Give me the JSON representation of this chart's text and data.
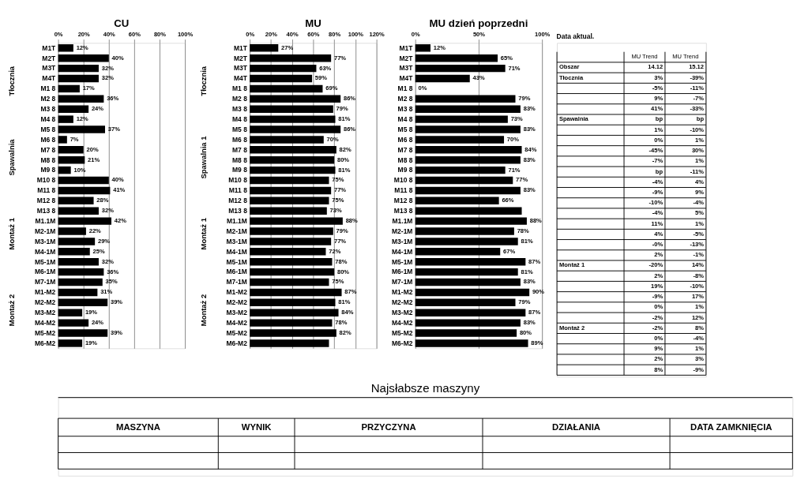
{
  "chart_data": [
    {
      "type": "bar",
      "orientation": "horizontal",
      "title": "CU",
      "color": "#000000",
      "grid": "x",
      "categories": [
        "M1T",
        "M2T",
        "M3T",
        "M4T",
        "M1 8",
        "M2 8",
        "M3 8",
        "M4 8",
        "M5 8",
        "M6 8",
        "M7 8",
        "M8 8",
        "M9 8",
        "M10 8",
        "M11 8",
        "M12 8",
        "M13 8",
        "M1.1M",
        "M2-1M",
        "M3-1M",
        "M4-1M",
        "M5-1M",
        "M6-1M",
        "M7-1M",
        "M1-M2",
        "M2-M2",
        "M3-M2",
        "M4-M2",
        "M5-M2",
        "M6-M2"
      ],
      "values": [
        12,
        40,
        32,
        32,
        17,
        36,
        24,
        12,
        37,
        7,
        20,
        21,
        10,
        40,
        41,
        28,
        32,
        42,
        22,
        29,
        25,
        32,
        36,
        35,
        31,
        39,
        19,
        24,
        39,
        19
      ],
      "value_labels": [
        "12%",
        "40%",
        "32%",
        "32%",
        "17%",
        "36%",
        "24%",
        "12%",
        "37%",
        "7%",
        "20%",
        "21%",
        "10%",
        "40%",
        "41%",
        "28%",
        "32%",
        "42%",
        "22%",
        "29%",
        "25%",
        "32%",
        "36%",
        "35%",
        "31%",
        "39%",
        "19%",
        "24%",
        "39%",
        "19%"
      ],
      "xlim": [
        0,
        100
      ],
      "xticks": [
        {
          "value": 0,
          "label": "0%"
        },
        {
          "value": 20,
          "label": "20%"
        },
        {
          "value": 40,
          "label": "40%"
        },
        {
          "value": 60,
          "label": "60%"
        },
        {
          "value": 80,
          "label": "80%"
        },
        {
          "value": 100,
          "label": "100%"
        }
      ],
      "annotations": [
        "Tłocznia",
        "Spawalnia",
        "Montaż 1",
        "Montaż 2"
      ]
    },
    {
      "type": "bar",
      "orientation": "horizontal",
      "title": "MU",
      "color": "#000000",
      "grid": "x",
      "categories": [
        "M1T",
        "M2T",
        "M3T",
        "M4T",
        "M1 8",
        "M2 8",
        "M3 8",
        "M4 8",
        "M5 8",
        "M6 8",
        "M7 8",
        "M8 8",
        "M9 8",
        "M10 8",
        "M11 8",
        "M12 8",
        "M13 8",
        "M1.1M",
        "M2-1M",
        "M3-1M",
        "M4-1M",
        "M5-1M",
        "M6-1M",
        "M7-1M",
        "M1-M2",
        "M2-M2",
        "M3-M2",
        "M4-M2",
        "M5-M2",
        "M6-M2"
      ],
      "values": [
        27,
        77,
        63,
        59,
        69,
        86,
        79,
        81,
        86,
        70,
        82,
        80,
        81,
        75,
        77,
        75,
        73,
        88,
        79,
        77,
        72,
        78,
        80,
        75,
        87,
        81,
        84,
        78,
        82,
        75
      ],
      "value_labels": [
        "27%",
        "77%",
        "63%",
        "59%",
        "69%",
        "86%",
        "79%",
        "81%",
        "86%",
        "70%",
        "82%",
        "80%",
        "81%",
        "75%",
        "77%",
        "75%",
        "73%",
        "88%",
        "79%",
        "77%",
        "72%",
        "78%",
        "80%",
        "75%",
        "87%",
        "81%",
        "84%",
        "78%",
        "82%",
        null
      ],
      "xlim": [
        0,
        120
      ],
      "xticks": [
        {
          "value": 0,
          "label": "0%"
        },
        {
          "value": 20,
          "label": "20%"
        },
        {
          "value": 40,
          "label": "40%"
        },
        {
          "value": 60,
          "label": "60%"
        },
        {
          "value": 80,
          "label": "80%"
        },
        {
          "value": 100,
          "label": "100%"
        },
        {
          "value": 120,
          "label": "120%"
        }
      ],
      "annotations": [
        "Tłocznia",
        "Spawalnia 1",
        "Montaż 1",
        "Montaż 2"
      ]
    },
    {
      "type": "bar",
      "orientation": "horizontal",
      "title": "MU dzień poprzedni",
      "color": "#000000",
      "grid": "x",
      "categories": [
        "M1T",
        "M2T",
        "M3T",
        "M4T",
        "M1 8",
        "M2 8",
        "M3 8",
        "M4 8",
        "M5 8",
        "M6 8",
        "M7 8",
        "M8 8",
        "M9 8",
        "M10 8",
        "M11 8",
        "M12 8",
        "M13 8",
        "M1.1M",
        "M2-1M",
        "M3-1M",
        "M4-1M",
        "M5-1M",
        "M6-1M",
        "M7-1M",
        "M1-M2",
        "M2-M2",
        "M3-M2",
        "M4-M2",
        "M5-M2",
        "M6-M2"
      ],
      "values": [
        12,
        65,
        71,
        43,
        0,
        79,
        83,
        73,
        83,
        70,
        84,
        83,
        71,
        77,
        83,
        66,
        84,
        88,
        78,
        81,
        67,
        87,
        81,
        83,
        90,
        79,
        87,
        83,
        80,
        89
      ],
      "value_labels": [
        "12%",
        "65%",
        "71%",
        "43%",
        "0%",
        "79%",
        "83%",
        "73%",
        "83%",
        "70%",
        "84%",
        "83%",
        "71%",
        "77%",
        "83%",
        "66%",
        null,
        "88%",
        "78%",
        "81%",
        "67%",
        "87%",
        "81%",
        "83%",
        "90%",
        "79%",
        "87%",
        "83%",
        "80%",
        "89%"
      ],
      "xlim": [
        0,
        100
      ],
      "xticks": [
        {
          "value": 0,
          "label": "0%"
        },
        {
          "value": 50,
          "label": "50%"
        },
        {
          "value": 100,
          "label": "100%"
        }
      ]
    },
    {
      "type": "other",
      "title": "Data aktual.",
      "categories": [
        "MU Trend",
        "MU Trend"
      ],
      "y_categories": [
        "Obszar",
        "Tłocznia",
        null,
        null,
        null,
        "Spawalnia",
        null,
        null,
        null,
        null,
        null,
        null,
        null,
        null,
        null,
        null,
        null,
        null,
        null,
        "Montaż 1",
        null,
        null,
        null,
        null,
        null,
        "Montaż 2",
        null,
        null,
        null,
        null
      ],
      "cell_labels": [
        [
          "14.12",
          "15.12"
        ],
        [
          "3%",
          "-39%"
        ],
        [
          "-5%",
          "-11%"
        ],
        [
          "9%",
          "-7%"
        ],
        [
          "41%",
          "-33%"
        ],
        [
          "bp",
          "bp"
        ],
        [
          "1%",
          "-10%"
        ],
        [
          "0%",
          "1%"
        ],
        [
          "-45%",
          "30%"
        ],
        [
          "-7%",
          "1%"
        ],
        [
          "bp",
          "-11%"
        ],
        [
          "-4%",
          "4%"
        ],
        [
          "-9%",
          "9%"
        ],
        [
          "-10%",
          "-4%"
        ],
        [
          "-4%",
          "5%"
        ],
        [
          "11%",
          "1%"
        ],
        [
          "4%",
          "-5%"
        ],
        [
          "-0%",
          "-13%"
        ],
        [
          "2%",
          "-1%"
        ],
        [
          "-20%",
          "14%"
        ],
        [
          "2%",
          "-8%"
        ],
        [
          "19%",
          "-10%"
        ],
        [
          "-9%",
          "17%"
        ],
        [
          "0%",
          "1%"
        ],
        [
          "-2%",
          "12%"
        ],
        [
          "-2%",
          "8%"
        ],
        [
          "0%",
          "-4%"
        ],
        [
          "9%",
          "1%"
        ],
        [
          "2%",
          "3%"
        ],
        [
          "8%",
          "-9%"
        ]
      ]
    },
    {
      "type": "other",
      "title": "Najsłabsze maszyny",
      "categories": [
        "MASZYNA",
        "WYNIK",
        "PRZYCZYNA",
        "DZIAŁANIA",
        "DATA ZAMKNIĘCIA"
      ],
      "cell_labels": [
        [
          null,
          null,
          null,
          null,
          null
        ],
        [
          null,
          null,
          null,
          null,
          null
        ]
      ]
    }
  ]
}
